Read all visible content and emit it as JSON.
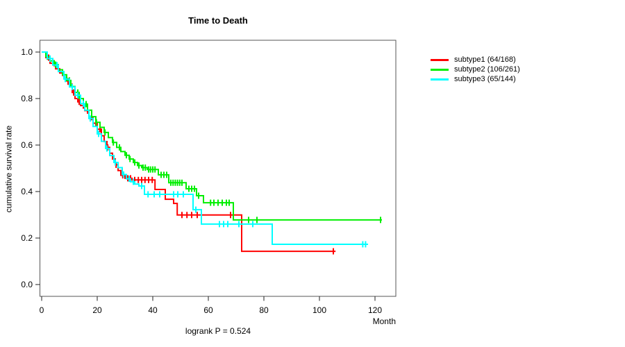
{
  "chart_data": {
    "type": "line",
    "variant": "kaplan-meier-step",
    "title": "Time to Death",
    "xlabel": "Month",
    "ylabel": "cumulative survival rate",
    "annotation": "logrank P = 0.524",
    "xlim": [
      0,
      120
    ],
    "ylim": [
      0.0,
      1.0
    ],
    "x_ticks": [
      0,
      20,
      40,
      60,
      80,
      100,
      120
    ],
    "y_ticks": [
      "0.0",
      "0.2",
      "0.4",
      "0.6",
      "0.8",
      "1.0"
    ],
    "grid": false,
    "legend_position": "right-outside",
    "series": [
      {
        "name": "subtype1",
        "label": "subtype1 (64/168)",
        "color": "#FF0000",
        "events": 64,
        "n": 168,
        "steps": [
          [
            0,
            1.0
          ],
          [
            1.5,
            0.976
          ],
          [
            3,
            0.952
          ],
          [
            5,
            0.928
          ],
          [
            6.5,
            0.91
          ],
          [
            8,
            0.886
          ],
          [
            9.5,
            0.862
          ],
          [
            11,
            0.826
          ],
          [
            12,
            0.8
          ],
          [
            13,
            0.786
          ],
          [
            14,
            0.77
          ],
          [
            15.5,
            0.748
          ],
          [
            17,
            0.72
          ],
          [
            18.5,
            0.694
          ],
          [
            20,
            0.668
          ],
          [
            21.5,
            0.64
          ],
          [
            22.5,
            0.615
          ],
          [
            23.5,
            0.59
          ],
          [
            24.5,
            0.565
          ],
          [
            25.5,
            0.54
          ],
          [
            26.5,
            0.515
          ],
          [
            27.5,
            0.49
          ],
          [
            28.5,
            0.47
          ],
          [
            30,
            0.457
          ],
          [
            32.5,
            0.45
          ],
          [
            40.8,
            0.409
          ],
          [
            44.5,
            0.367
          ],
          [
            47.5,
            0.349
          ],
          [
            48.8,
            0.299
          ],
          [
            72,
            0.143
          ]
        ],
        "end_time": 105.8,
        "censor_times": [
          2.5,
          4.5,
          6,
          7.5,
          9,
          10.5,
          11.5,
          13.5,
          15,
          16.5,
          18,
          19.5,
          21,
          23.8,
          26.8,
          29.2,
          31,
          32,
          33.5,
          34.8,
          36,
          37.2,
          38.5,
          39.8,
          50.5,
          52.3,
          54,
          56,
          68,
          105
        ]
      },
      {
        "name": "subtype2",
        "label": "subtype2 (106/261)",
        "color": "#00EE00",
        "events": 106,
        "n": 261,
        "steps": [
          [
            0,
            1.0
          ],
          [
            1.5,
            0.98
          ],
          [
            3,
            0.962
          ],
          [
            4.5,
            0.946
          ],
          [
            6,
            0.924
          ],
          [
            7.5,
            0.902
          ],
          [
            9,
            0.878
          ],
          [
            10.5,
            0.852
          ],
          [
            12,
            0.826
          ],
          [
            13.5,
            0.8
          ],
          [
            15,
            0.776
          ],
          [
            16.5,
            0.75
          ],
          [
            18,
            0.722
          ],
          [
            19.5,
            0.698
          ],
          [
            21,
            0.676
          ],
          [
            22.5,
            0.654
          ],
          [
            24,
            0.632
          ],
          [
            25.5,
            0.611
          ],
          [
            27,
            0.59
          ],
          [
            28.5,
            0.572
          ],
          [
            30,
            0.556
          ],
          [
            31.5,
            0.54
          ],
          [
            33,
            0.525
          ],
          [
            34.5,
            0.512
          ],
          [
            36,
            0.503
          ],
          [
            38,
            0.495
          ],
          [
            42,
            0.472
          ],
          [
            45.75,
            0.438
          ],
          [
            52,
            0.412
          ],
          [
            55.75,
            0.382
          ],
          [
            58.25,
            0.352
          ],
          [
            69,
            0.278
          ]
        ],
        "end_time": 122.5,
        "censor_times": [
          2,
          5,
          8,
          10,
          13,
          16,
          19.7,
          22.8,
          25.8,
          28,
          30.5,
          31.8,
          33.5,
          35,
          36.5,
          37.3,
          38.5,
          39.2,
          40,
          40.8,
          43,
          44,
          45,
          46.5,
          47.3,
          48.1,
          48.9,
          49.7,
          50.5,
          53,
          54,
          55,
          56.5,
          60.8,
          62,
          63.5,
          65,
          66.5,
          67.5,
          74.5,
          77.5,
          122
        ]
      },
      {
        "name": "subtype3",
        "label": "subtype3 (65/144)",
        "color": "#00FFFF",
        "events": 65,
        "n": 144,
        "steps": [
          [
            0,
            1.0
          ],
          [
            2,
            0.972
          ],
          [
            4,
            0.944
          ],
          [
            6,
            0.916
          ],
          [
            8,
            0.884
          ],
          [
            10,
            0.85
          ],
          [
            12,
            0.814
          ],
          [
            14,
            0.778
          ],
          [
            15.5,
            0.75
          ],
          [
            17,
            0.714
          ],
          [
            18.5,
            0.68
          ],
          [
            20,
            0.648
          ],
          [
            21.5,
            0.616
          ],
          [
            23,
            0.585
          ],
          [
            24.5,
            0.555
          ],
          [
            26,
            0.525
          ],
          [
            27.5,
            0.503
          ],
          [
            29,
            0.473
          ],
          [
            30.5,
            0.455
          ],
          [
            32,
            0.442
          ],
          [
            33.5,
            0.432
          ],
          [
            35,
            0.424
          ],
          [
            37,
            0.388
          ],
          [
            54.5,
            0.322
          ],
          [
            57.5,
            0.26
          ],
          [
            83,
            0.173
          ]
        ],
        "end_time": 117.5,
        "censor_times": [
          3,
          5.5,
          8.5,
          11,
          13,
          15,
          17.5,
          20.5,
          23.5,
          26.5,
          29.5,
          31.5,
          33,
          36,
          38.3,
          40.5,
          42.5,
          47.5,
          49,
          51,
          55.5,
          64,
          65.5,
          67,
          71,
          76,
          115.6,
          116.6
        ]
      }
    ]
  }
}
